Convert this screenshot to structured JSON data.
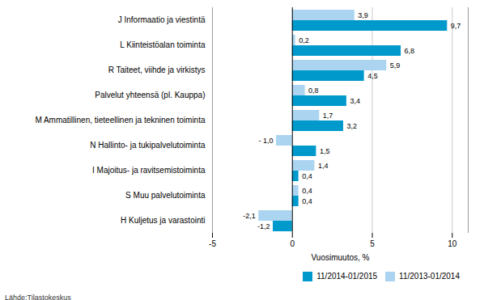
{
  "chart_data": {
    "type": "bar",
    "orientation": "horizontal",
    "categories": [
      "J Informaatio ja viestintä",
      "L Kiinteistöalan toiminta",
      "R Taiteet, viihde ja virkistys",
      "Palvelut yhteensä (pl. Kauppa)",
      "M Ammatillinen, tieteellinen ja tekninen toiminta",
      "N Hallinto- ja tukipalvelutoiminta",
      "I Majoitus- ja ravitsemistoiminta",
      "S Muu palvelutoiminta",
      "H Kuljetus ja varastointi"
    ],
    "series": [
      {
        "name": "11/2014-01/2015",
        "color": "#0099cc",
        "values": [
          9.7,
          6.8,
          4.5,
          3.4,
          3.2,
          1.5,
          0.4,
          0.4,
          -1.2
        ],
        "value_labels": [
          "9,7",
          "6,8",
          "4,5",
          "3,4",
          "3,2",
          "1,5",
          "0,4",
          "0,4",
          "-1,2"
        ]
      },
      {
        "name": "11/2013-01/2014",
        "color": "#aad4f0",
        "values": [
          3.9,
          0.2,
          5.9,
          0.8,
          1.7,
          -1.0,
          1.4,
          0.4,
          -2.1
        ],
        "value_labels": [
          "3,9",
          "0,2",
          "5,9",
          "0,8",
          "1,7",
          "- 1,0",
          "1,4",
          "0,4",
          "-2,1"
        ]
      }
    ],
    "xlabel": "Vuosimuutos, %",
    "xlim": [
      -5,
      11
    ],
    "xticks": [
      -5,
      0,
      5,
      10
    ],
    "grid": true,
    "data_labels": true,
    "legend": "lower right",
    "annotations": [
      "Lähde:Tilastokeskus"
    ]
  }
}
